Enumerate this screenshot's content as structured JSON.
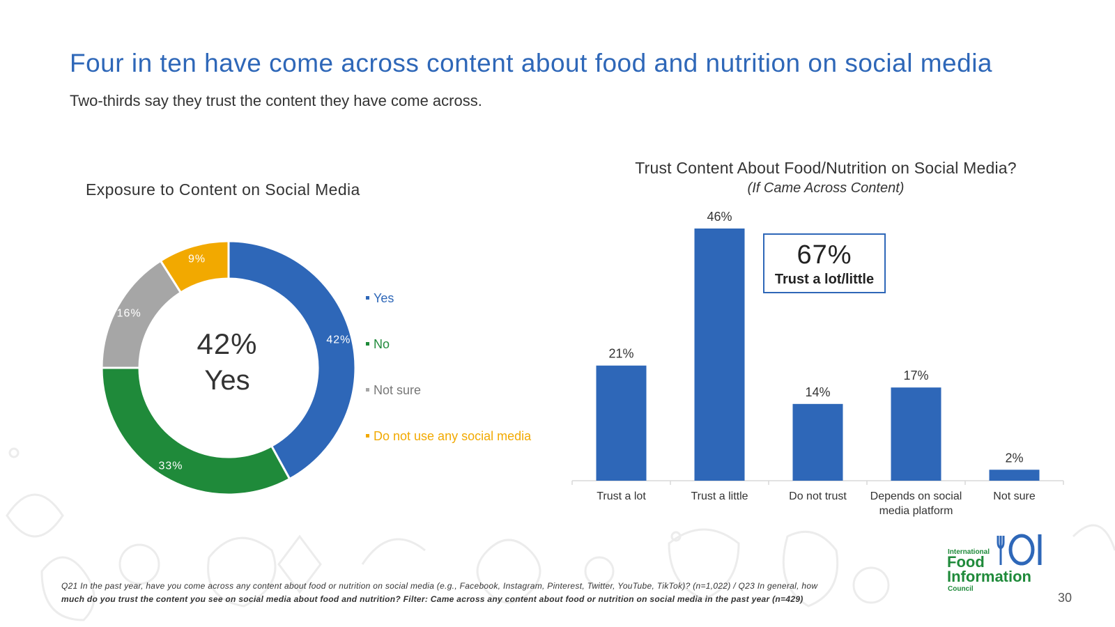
{
  "title": "Four in ten have come across content about food and nutrition on social media",
  "subtitle": "Two-thirds say they trust the content they have come across.",
  "chart_data": [
    {
      "type": "pie",
      "title": "Exposure to Content on Social Media",
      "center_value": "42%",
      "center_label": "Yes",
      "legend_position": "right",
      "series": [
        {
          "name": "Yes",
          "value": 42,
          "label": "42%",
          "color": "#2e67b8"
        },
        {
          "name": "No",
          "value": 33,
          "label": "33%",
          "color": "#1f8a3a"
        },
        {
          "name": "Not sure",
          "value": 16,
          "label": "16%",
          "color": "#a6a6a6"
        },
        {
          "name": "Do not use any social media",
          "value": 9,
          "label": "9%",
          "color": "#f2a900"
        }
      ]
    },
    {
      "type": "bar",
      "title": "Trust Content About Food/Nutrition on Social Media?",
      "subtitle": "(If Came Across Content)",
      "categories": [
        "Trust a lot",
        "Trust a little",
        "Do not trust",
        "Depends on social media platform",
        "Not sure"
      ],
      "category_lines": [
        [
          "Trust a lot"
        ],
        [
          "Trust a little"
        ],
        [
          "Do not trust"
        ],
        [
          "Depends on social",
          "media platform"
        ],
        [
          "Not sure"
        ]
      ],
      "values": [
        21,
        46,
        14,
        17,
        2
      ],
      "labels": [
        "21%",
        "46%",
        "14%",
        "17%",
        "2%"
      ],
      "ylim": [
        0,
        46
      ],
      "grid": false,
      "color": "#2e67b8",
      "callout": {
        "value": "67%",
        "label": "Trust a lot/little"
      }
    }
  ],
  "footnote": {
    "line1": "Q21 In the past year, have you come across any content about food or nutrition on social media (e.g., Facebook, Instagram, Pinterest, Twitter, YouTube, TikTok)? (n=1,022) / Q23 In general, how",
    "line2": "much do you trust the content you see on social media about food and nutrition? Filter: Came across any content about food or nutrition on social media in the past year (n=429)"
  },
  "logo": {
    "line1": "International",
    "line2": "Food",
    "line3": "Information",
    "line4": "Council",
    "color": "#1f8a3a"
  },
  "page_number": "30"
}
